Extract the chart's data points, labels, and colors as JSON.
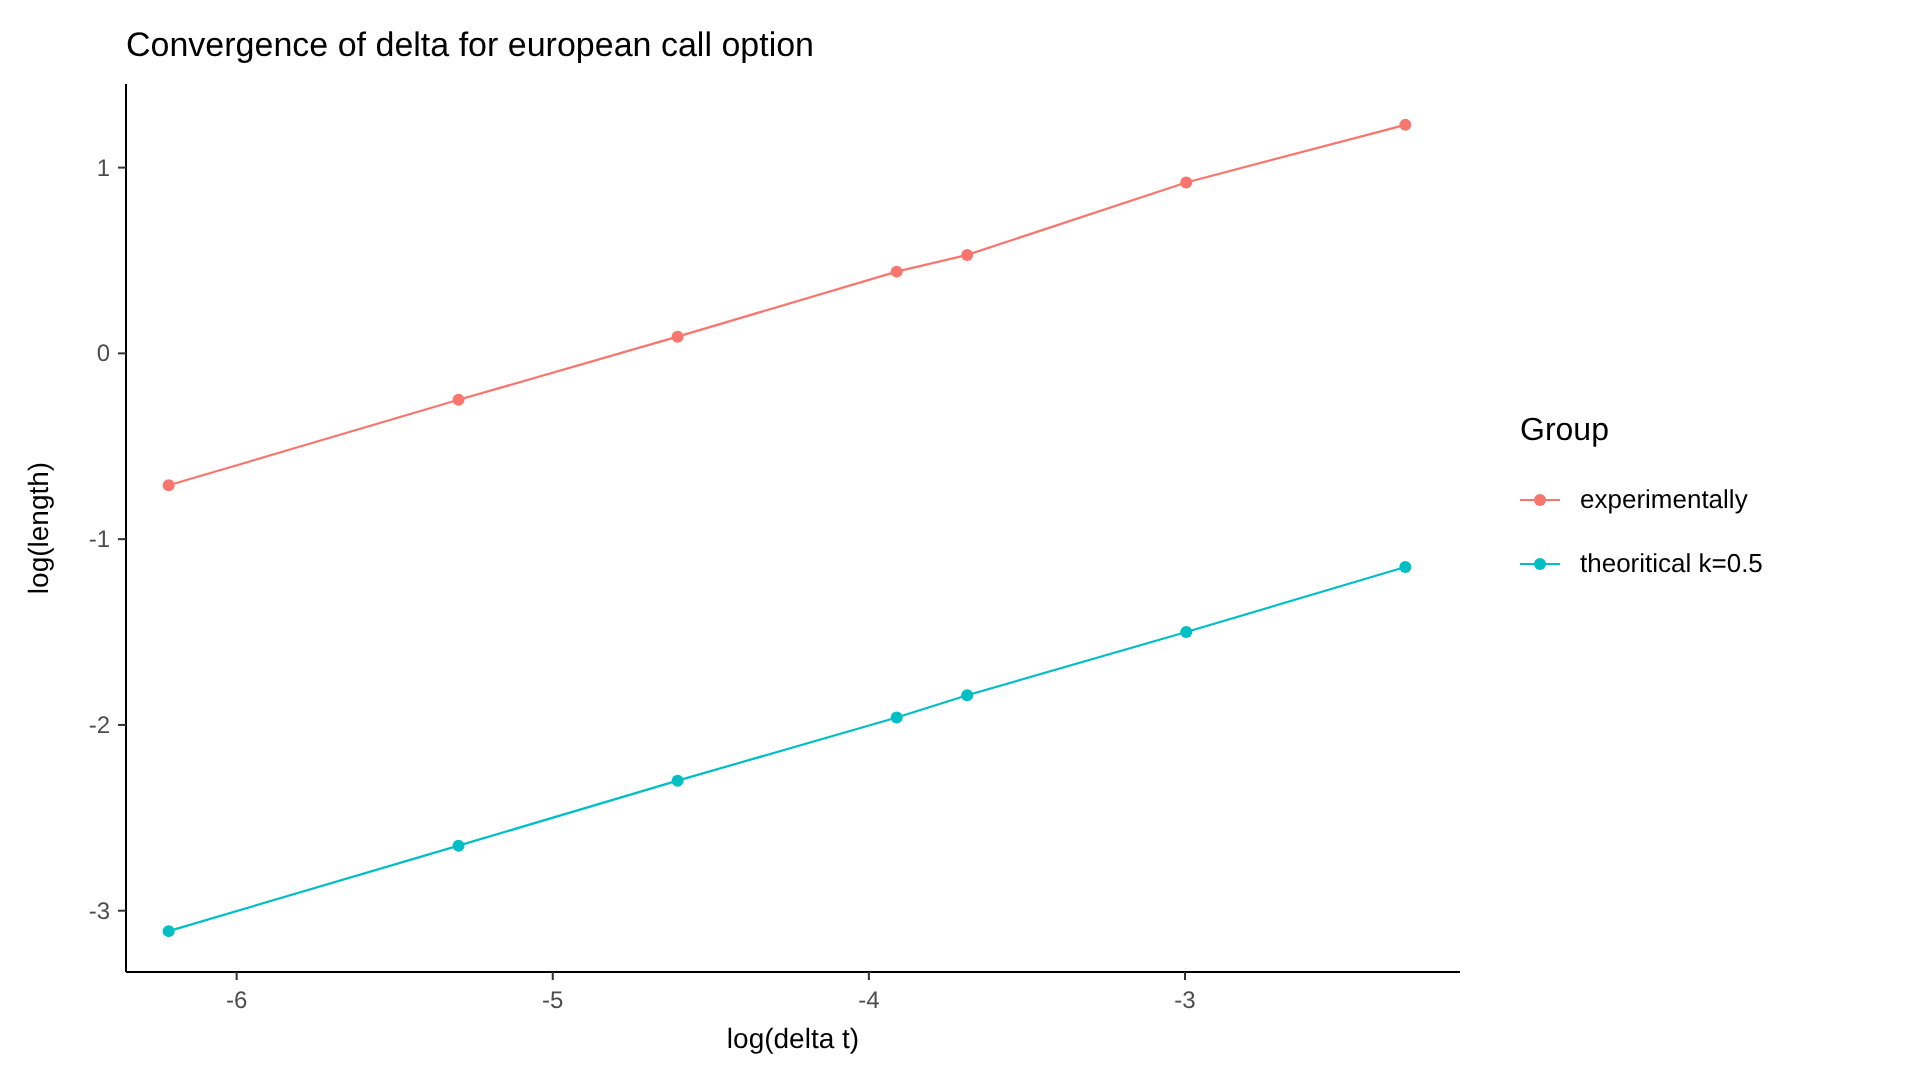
{
  "chart_data": {
    "type": "line",
    "title": "Convergence of delta for european call option",
    "xlabel": "log(delta t)",
    "ylabel": "log(length)",
    "legend_title": "Group",
    "legend": "right",
    "marker": "circle",
    "grid": false,
    "x": [
      -6.215,
      -5.298,
      -4.605,
      -3.912,
      -3.689,
      -2.996,
      -2.303
    ],
    "xlim": [
      -6.35,
      -2.13
    ],
    "xticks": [
      -6,
      -5,
      -4,
      -3
    ],
    "ylim": [
      -3.33,
      1.45
    ],
    "yticks": [
      -3,
      -2,
      -1,
      0,
      1
    ],
    "series": [
      {
        "name": "experimentally",
        "color": "#f8766d",
        "values": [
          -0.71,
          -0.25,
          0.09,
          0.44,
          0.53,
          0.92,
          1.23
        ]
      },
      {
        "name": "theoritical k=0.5",
        "color": "#00bfc4",
        "values": [
          -3.11,
          -2.65,
          -2.3,
          -1.96,
          -1.84,
          -1.5,
          -1.15
        ]
      }
    ]
  }
}
